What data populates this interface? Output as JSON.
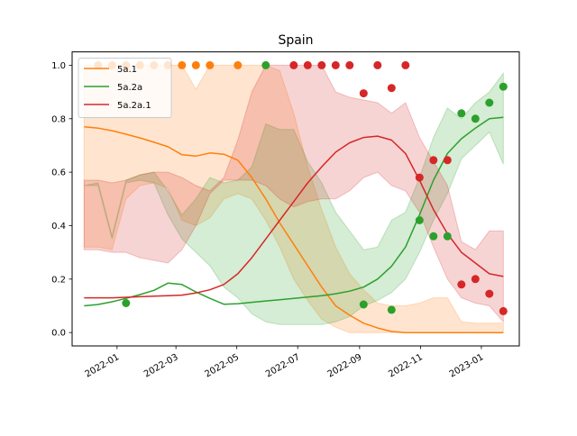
{
  "chart_data": {
    "type": "line",
    "title": "Spain",
    "xlabel": "",
    "ylabel": "",
    "xlim": [
      "2021-11-17",
      "2023-02-08"
    ],
    "ylim": [
      -0.05,
      1.05
    ],
    "x_ticks": [
      {
        "date": "2022-01-01",
        "label": "2022-01"
      },
      {
        "date": "2022-03-01",
        "label": "2022-03"
      },
      {
        "date": "2022-05-01",
        "label": "2022-05"
      },
      {
        "date": "2022-07-01",
        "label": "2022-07"
      },
      {
        "date": "2022-09-01",
        "label": "2022-09"
      },
      {
        "date": "2022-11-01",
        "label": "2022-11"
      },
      {
        "date": "2023-01-01",
        "label": "2023-01"
      }
    ],
    "y_ticks": [
      {
        "value": 0.0,
        "label": "0.0"
      },
      {
        "value": 0.2,
        "label": "0.2"
      },
      {
        "value": 0.4,
        "label": "0.4"
      },
      {
        "value": 0.6,
        "label": "0.6"
      },
      {
        "value": 0.8,
        "label": "0.8"
      },
      {
        "value": 1.0,
        "label": "1.0"
      }
    ],
    "grid": false,
    "legend_position": "top-left",
    "series": [
      {
        "name": "5a.1",
        "color": "#ff7f0e",
        "band_opacity": 0.2,
        "dates": [
          "2021-11-29",
          "2021-12-13",
          "2021-12-27",
          "2022-01-10",
          "2022-01-24",
          "2022-02-07",
          "2022-02-21",
          "2022-03-07",
          "2022-03-21",
          "2022-04-04",
          "2022-04-18",
          "2022-05-02",
          "2022-05-16",
          "2022-05-30",
          "2022-06-13",
          "2022-06-27",
          "2022-07-11",
          "2022-07-25",
          "2022-08-08",
          "2022-08-22",
          "2022-09-05",
          "2022-09-19",
          "2022-10-03",
          "2022-10-17",
          "2022-10-31",
          "2022-11-14",
          "2022-11-28",
          "2022-12-12",
          "2022-12-26",
          "2023-01-09",
          "2023-01-23"
        ],
        "mean": [
          0.77,
          0.765,
          0.755,
          0.742,
          0.728,
          0.712,
          0.695,
          0.665,
          0.66,
          0.672,
          0.667,
          0.645,
          0.58,
          0.5,
          0.41,
          0.33,
          0.25,
          0.17,
          0.1,
          0.065,
          0.035,
          0.017,
          0.004,
          0.0,
          0.0,
          0.0,
          0.0,
          0.0,
          0.0,
          0.0,
          0.0
        ],
        "lower": [
          0.32,
          0.32,
          0.31,
          0.5,
          0.55,
          0.56,
          0.54,
          0.42,
          0.4,
          0.43,
          0.5,
          0.52,
          0.5,
          0.42,
          0.32,
          0.2,
          0.12,
          0.05,
          0.02,
          0.0,
          0.0,
          0.0,
          0.0,
          0.0,
          0.0,
          0.0,
          0.0,
          0.0,
          0.0,
          0.0,
          0.0
        ],
        "upper": [
          1.0,
          1.0,
          1.0,
          1.0,
          1.0,
          1.0,
          1.0,
          1.0,
          0.91,
          1.0,
          1.0,
          1.0,
          1.0,
          1.0,
          0.98,
          0.82,
          0.62,
          0.46,
          0.32,
          0.22,
          0.16,
          0.11,
          0.1,
          0.1,
          0.11,
          0.13,
          0.13,
          0.04,
          0.035,
          0.035,
          0.035
        ],
        "points": [
          {
            "date": "2021-12-13",
            "value": 1.0
          },
          {
            "date": "2021-12-27",
            "value": 1.0
          },
          {
            "date": "2022-01-10",
            "value": 1.0
          },
          {
            "date": "2022-01-24",
            "value": 1.0
          },
          {
            "date": "2022-02-07",
            "value": 1.0
          },
          {
            "date": "2022-02-21",
            "value": 1.0
          },
          {
            "date": "2022-03-07",
            "value": 1.0
          },
          {
            "date": "2022-03-21",
            "value": 1.0
          },
          {
            "date": "2022-04-04",
            "value": 1.0
          },
          {
            "date": "2022-05-02",
            "value": 1.0
          }
        ]
      },
      {
        "name": "5a.2a",
        "color": "#2ca02c",
        "band_opacity": 0.2,
        "dates": [
          "2021-11-29",
          "2021-12-13",
          "2021-12-27",
          "2022-01-10",
          "2022-01-24",
          "2022-02-07",
          "2022-02-21",
          "2022-03-07",
          "2022-03-21",
          "2022-04-04",
          "2022-04-18",
          "2022-05-02",
          "2022-05-16",
          "2022-05-30",
          "2022-06-13",
          "2022-06-27",
          "2022-07-11",
          "2022-07-25",
          "2022-08-08",
          "2022-08-22",
          "2022-09-05",
          "2022-09-19",
          "2022-10-03",
          "2022-10-17",
          "2022-10-31",
          "2022-11-14",
          "2022-11-28",
          "2022-12-12",
          "2022-12-26",
          "2023-01-09",
          "2023-01-23"
        ],
        "mean": [
          0.1,
          0.105,
          0.115,
          0.128,
          0.142,
          0.158,
          0.185,
          0.18,
          0.152,
          0.128,
          0.106,
          0.108,
          0.113,
          0.118,
          0.123,
          0.128,
          0.133,
          0.138,
          0.145,
          0.155,
          0.17,
          0.2,
          0.248,
          0.32,
          0.44,
          0.57,
          0.67,
          0.725,
          0.765,
          0.8,
          0.805
        ],
        "lower": [
          0.55,
          0.55,
          0.35,
          0.56,
          0.57,
          0.56,
          0.44,
          0.35,
          0.3,
          0.25,
          0.17,
          0.13,
          0.07,
          0.04,
          0.03,
          0.03,
          0.03,
          0.03,
          0.04,
          0.06,
          0.1,
          0.12,
          0.15,
          0.2,
          0.3,
          0.42,
          0.52,
          0.65,
          0.7,
          0.75,
          0.63
        ],
        "upper": [
          0.55,
          0.56,
          0.36,
          0.57,
          0.59,
          0.6,
          0.53,
          0.44,
          0.5,
          0.58,
          0.56,
          0.57,
          0.62,
          0.78,
          0.76,
          0.76,
          0.64,
          0.56,
          0.45,
          0.38,
          0.31,
          0.32,
          0.42,
          0.45,
          0.58,
          0.73,
          0.84,
          0.8,
          0.86,
          0.9,
          0.97
        ],
        "points": [
          {
            "date": "2022-01-10",
            "value": 0.11
          },
          {
            "date": "2022-05-30",
            "value": 1.0
          },
          {
            "date": "2022-09-05",
            "value": 0.105
          },
          {
            "date": "2022-10-03",
            "value": 0.085
          },
          {
            "date": "2022-10-31",
            "value": 0.42
          },
          {
            "date": "2022-11-14",
            "value": 0.36
          },
          {
            "date": "2022-11-28",
            "value": 0.36
          },
          {
            "date": "2022-12-12",
            "value": 0.82
          },
          {
            "date": "2022-12-26",
            "value": 0.8
          },
          {
            "date": "2023-01-09",
            "value": 0.86
          },
          {
            "date": "2023-01-23",
            "value": 0.92
          }
        ]
      },
      {
        "name": "5a.2a.1",
        "color": "#d62728",
        "band_opacity": 0.2,
        "dates": [
          "2021-11-29",
          "2021-12-13",
          "2021-12-27",
          "2022-01-10",
          "2022-01-24",
          "2022-02-07",
          "2022-02-21",
          "2022-03-07",
          "2022-03-21",
          "2022-04-04",
          "2022-04-18",
          "2022-05-02",
          "2022-05-16",
          "2022-05-30",
          "2022-06-13",
          "2022-06-27",
          "2022-07-11",
          "2022-07-25",
          "2022-08-08",
          "2022-08-22",
          "2022-09-05",
          "2022-09-19",
          "2022-10-03",
          "2022-10-17",
          "2022-10-31",
          "2022-11-14",
          "2022-11-28",
          "2022-12-12",
          "2022-12-26",
          "2023-01-09",
          "2023-01-23"
        ],
        "mean": [
          0.13,
          0.13,
          0.13,
          0.132,
          0.134,
          0.136,
          0.138,
          0.14,
          0.148,
          0.16,
          0.18,
          0.22,
          0.28,
          0.35,
          0.42,
          0.49,
          0.56,
          0.62,
          0.675,
          0.71,
          0.73,
          0.735,
          0.72,
          0.67,
          0.57,
          0.46,
          0.37,
          0.3,
          0.26,
          0.22,
          0.21
        ],
        "lower": [
          0.31,
          0.31,
          0.3,
          0.3,
          0.28,
          0.27,
          0.26,
          0.31,
          0.4,
          0.52,
          0.57,
          0.57,
          0.57,
          0.55,
          0.5,
          0.47,
          0.49,
          0.5,
          0.5,
          0.53,
          0.58,
          0.6,
          0.55,
          0.53,
          0.45,
          0.32,
          0.2,
          0.13,
          0.11,
          0.1,
          0.04
        ],
        "upper": [
          0.57,
          0.57,
          0.56,
          0.57,
          0.59,
          0.6,
          0.6,
          0.58,
          0.55,
          0.53,
          0.58,
          0.72,
          0.9,
          1.0,
          1.0,
          1.0,
          1.0,
          1.0,
          0.9,
          0.88,
          0.87,
          0.86,
          0.82,
          0.86,
          0.73,
          0.64,
          0.55,
          0.34,
          0.31,
          0.38,
          0.38
        ],
        "points": [
          {
            "date": "2022-06-27",
            "value": 1.0
          },
          {
            "date": "2022-07-11",
            "value": 1.0
          },
          {
            "date": "2022-07-25",
            "value": 1.0
          },
          {
            "date": "2022-08-08",
            "value": 1.0
          },
          {
            "date": "2022-08-22",
            "value": 1.0
          },
          {
            "date": "2022-09-05",
            "value": 0.895
          },
          {
            "date": "2022-09-19",
            "value": 1.0
          },
          {
            "date": "2022-10-03",
            "value": 0.915
          },
          {
            "date": "2022-10-17",
            "value": 1.0
          },
          {
            "date": "2022-10-31",
            "value": 0.58
          },
          {
            "date": "2022-11-14",
            "value": 0.645
          },
          {
            "date": "2022-11-28",
            "value": 0.645
          },
          {
            "date": "2022-12-12",
            "value": 0.18
          },
          {
            "date": "2022-12-26",
            "value": 0.2
          },
          {
            "date": "2023-01-09",
            "value": 0.145
          },
          {
            "date": "2023-01-23",
            "value": 0.08
          }
        ]
      }
    ]
  }
}
